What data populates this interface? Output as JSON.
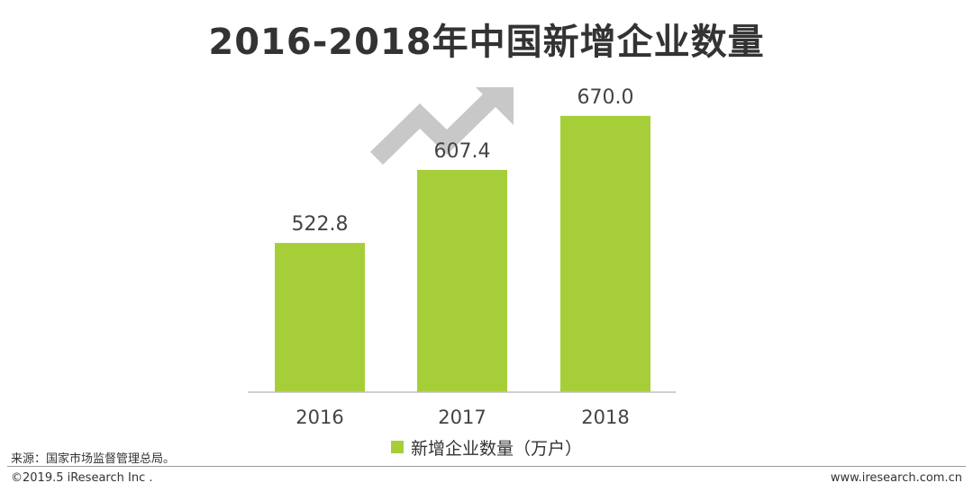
{
  "title": "2016-2018年中国新增企业数量",
  "chart_data": {
    "type": "bar",
    "categories": [
      "2016",
      "2017",
      "2018"
    ],
    "series": [
      {
        "name": "新增企业数量（万户）",
        "values": [
          522.8,
          607.4,
          670.0
        ]
      }
    ],
    "value_labels": [
      "522.8",
      "607.4",
      "670.0"
    ],
    "ylim": [
      350,
      700
    ],
    "bar_color": "#A6CE39",
    "axis_color": "#BFBFBF",
    "legend_position": "bottom"
  },
  "legend": {
    "label": "新增企业数量（万户）"
  },
  "source": "来源：国家市场监督管理总局。",
  "copyright": "©2019.5 iResearch Inc .",
  "website": "www.iresearch.com.cn",
  "decor": {
    "arrow_icon": "trend-up-arrow-icon",
    "arrow_color": "#C8C8C8"
  }
}
